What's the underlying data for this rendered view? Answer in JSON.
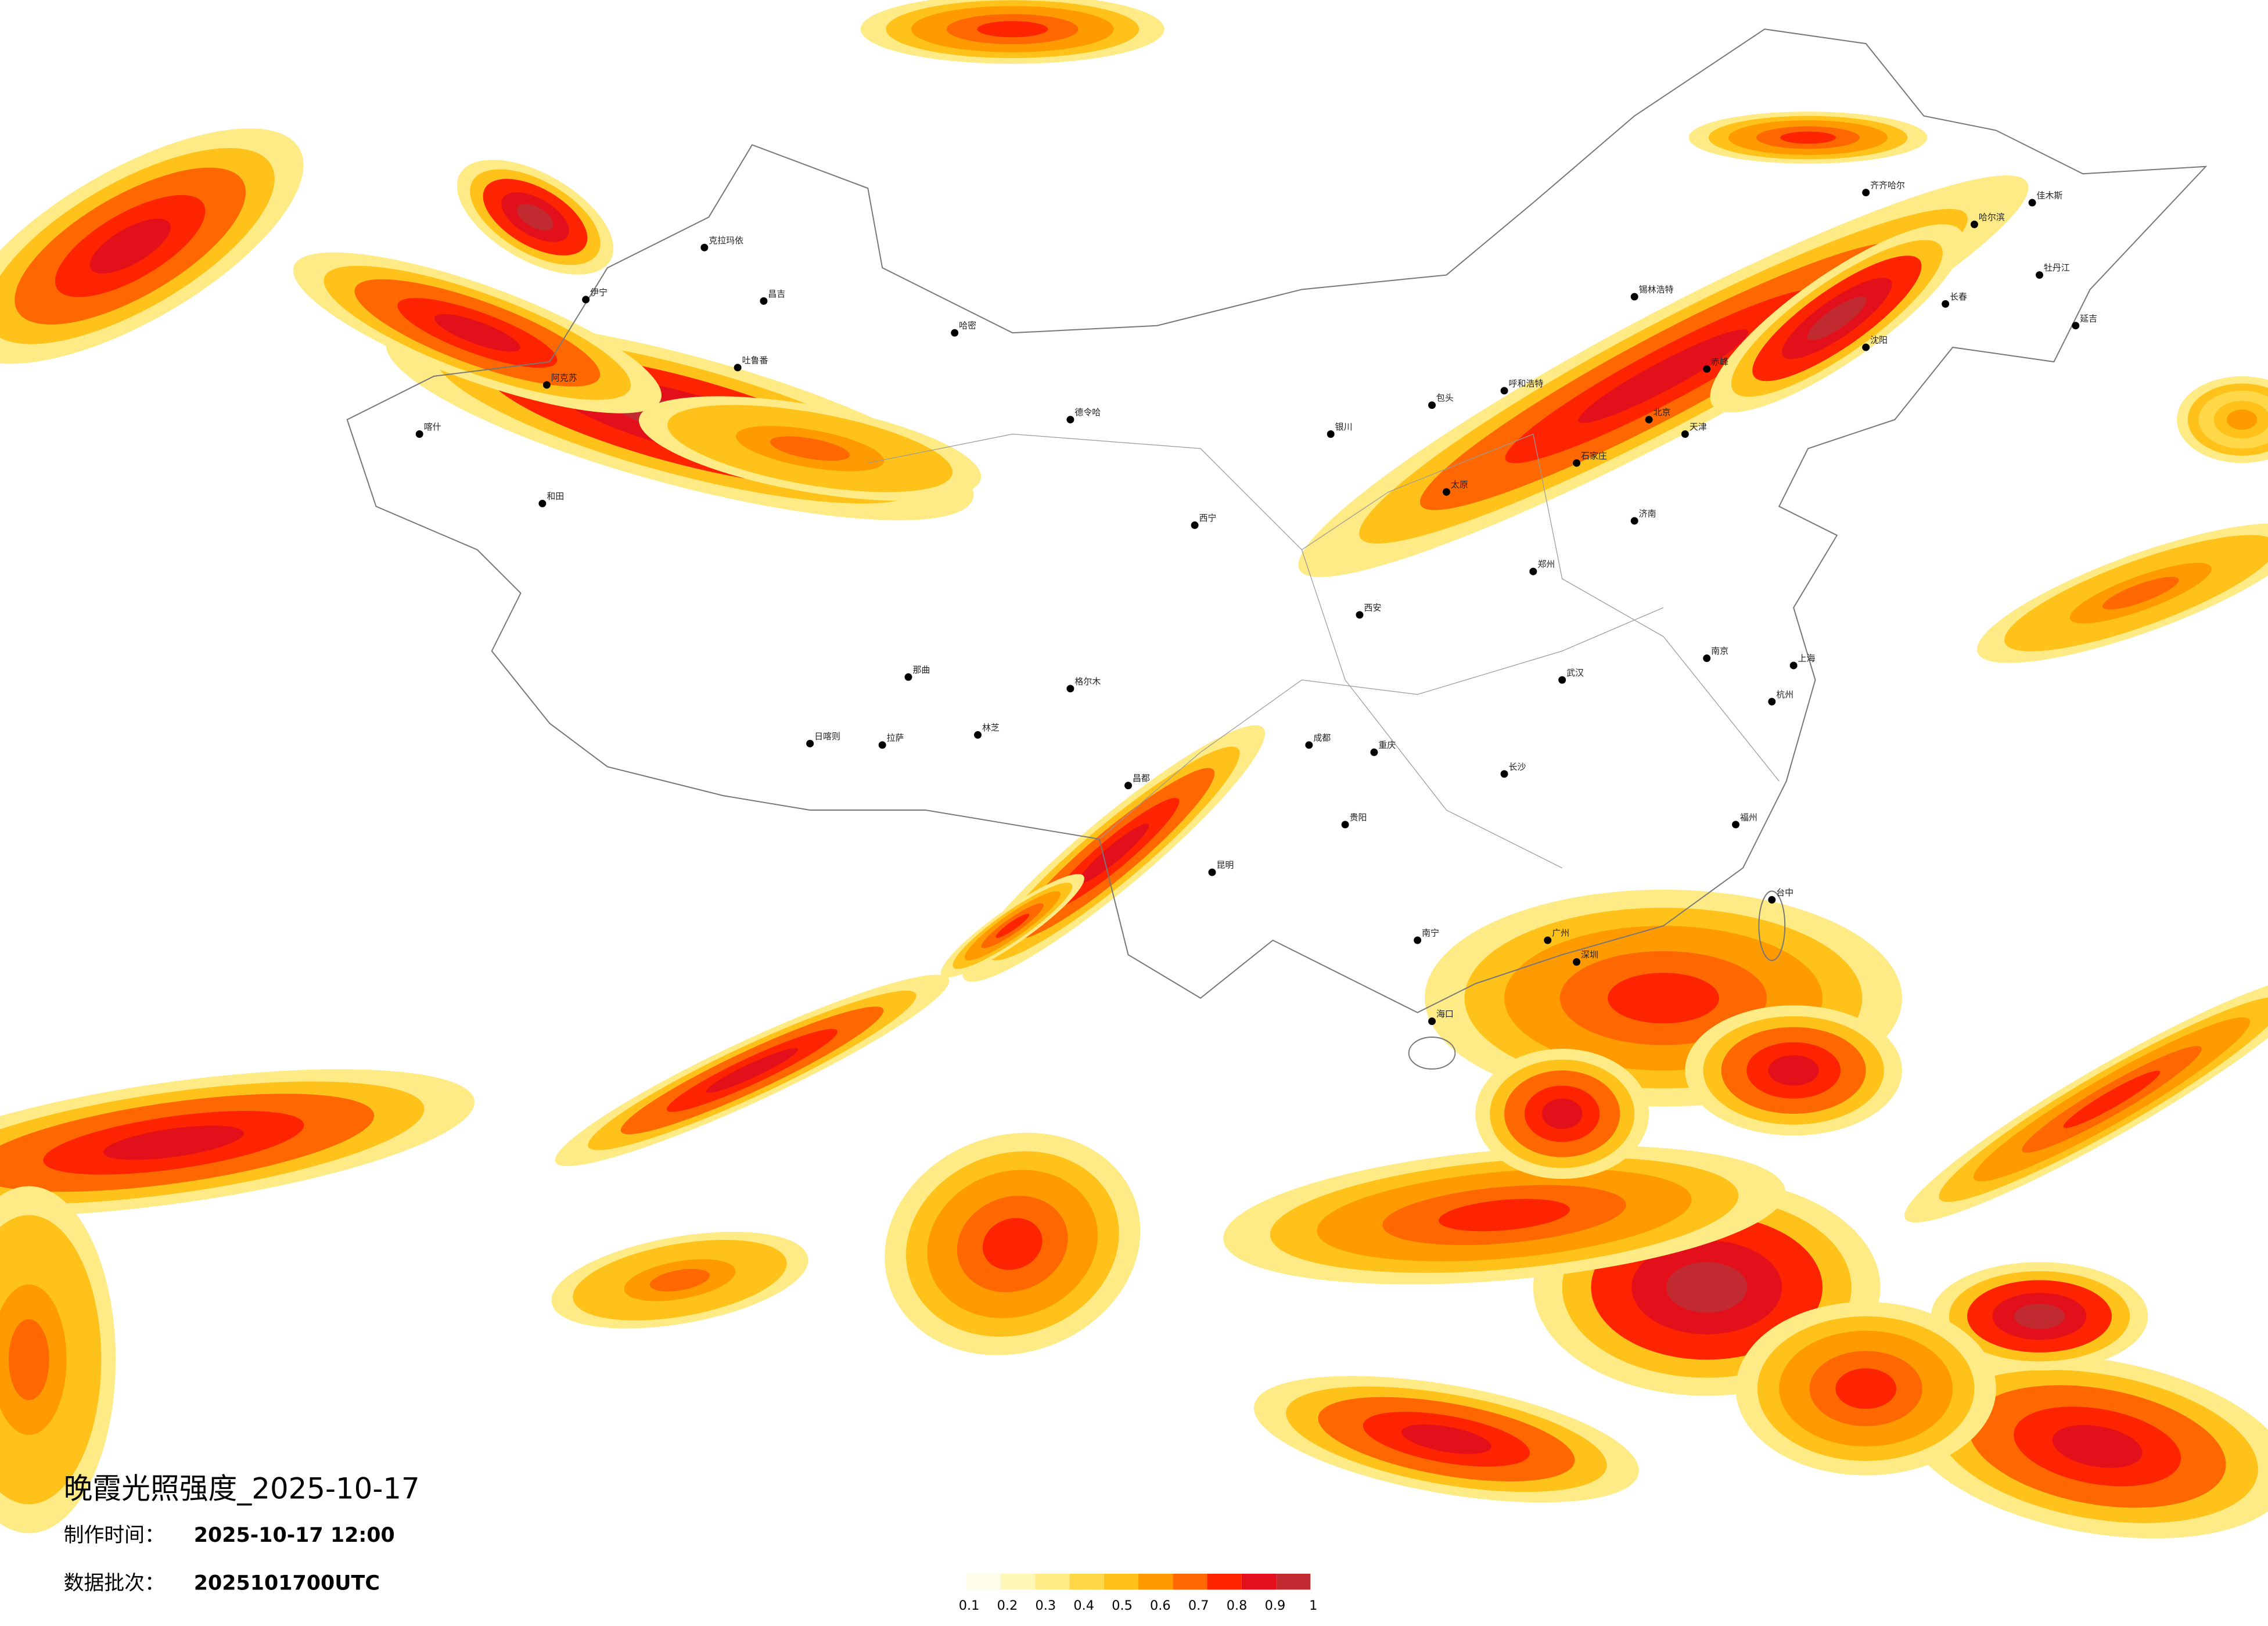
{
  "map": {
    "title": "晚霞光照强度_2025-10-17",
    "made_time_label": "制作时间：",
    "made_time": "2025-10-17 12:00",
    "batch_label": "数据批次：",
    "batch": "2025101700UTC"
  },
  "legend": {
    "colors": [
      "#fffde8",
      "#fff6b8",
      "#ffeb85",
      "#ffd84a",
      "#ffc21a",
      "#ff9a00",
      "#ff6800",
      "#ff2400",
      "#e3101c",
      "#c02a30"
    ],
    "ticks": [
      0.1,
      0.2,
      0.3,
      0.4,
      0.5,
      0.6,
      0.7,
      0.8,
      0.9,
      1
    ]
  },
  "cities": [
    "克拉玛依",
    "伊宁",
    "阿克苏",
    "喀什",
    "和田",
    "哈密",
    "昌吉",
    "吐鲁番",
    "德令哈",
    "格尔木",
    "西宁",
    "拉萨",
    "日喀则",
    "那曲",
    "林芝",
    "昌都",
    "成都",
    "重庆",
    "昆明",
    "贵阳",
    "南宁",
    "海口",
    "广州",
    "深圳",
    "福州",
    "台中",
    "杭州",
    "上海",
    "南京",
    "武汉",
    "长沙",
    "郑州",
    "济南",
    "北京",
    "天津",
    "石家庄",
    "太原",
    "呼和浩特",
    "包头",
    "银川",
    "西安",
    "沈阳",
    "长春",
    "哈尔滨",
    "齐齐哈尔",
    "佳木斯",
    "牡丹江",
    "延吉",
    "锡林浩特",
    "赤峰"
  ]
}
